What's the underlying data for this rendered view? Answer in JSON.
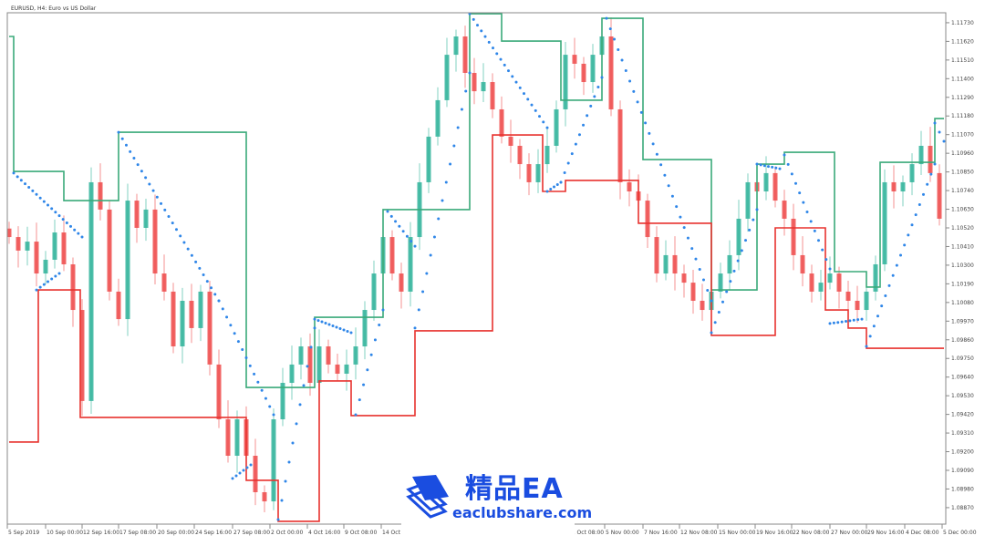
{
  "header": {
    "title": "EURUSD, H4:  Euro vs US Dollar"
  },
  "watermark": {
    "brand_cn": "精品EA",
    "url": "eaclubshare.com"
  },
  "colors": {
    "bull": "#2fb39a",
    "bear": "#ef4a4a",
    "upper_channel": "#3aaa7a",
    "lower_channel": "#e8322e",
    "sar": "#2f86e8",
    "axis": "#888888"
  },
  "chart_data": {
    "type": "candlestick",
    "symbol": "EURUSD",
    "timeframe": "H4",
    "ylim": [
      1.0877,
      1.1186
    ],
    "y_ticks": [
      "1.11730",
      "1.11620",
      "1.11510",
      "1.11400",
      "1.11290",
      "1.11180",
      "1.11070",
      "1.10960",
      "1.10850",
      "1.10740",
      "1.10630",
      "1.10520",
      "1.10410",
      "1.10300",
      "1.10190",
      "1.10080",
      "1.09970",
      "1.09860",
      "1.09750",
      "1.09640",
      "1.09530",
      "1.09420",
      "1.09310",
      "1.09200",
      "1.09090",
      "1.08980",
      "1.08870"
    ],
    "x_ticks": [
      "5 Sep 2019",
      "10 Sep 00:00",
      "12 Sep 16:00",
      "17 Sep 08:00",
      "20 Sep 00:00",
      "24 Sep 16:00",
      "27 Sep 08:00",
      "2 Oct 00:00",
      "4 Oct 16:00",
      "9 Oct 08:00",
      "14 Oct 00:00",
      "31 Oct 08:00",
      "5 Nov 00:00",
      "7 Nov 16:00",
      "12 Nov 08:00",
      "15 Nov 00:00",
      "19 Nov 16:00",
      "22 Nov 08:00",
      "27 Nov 00:00",
      "29 Nov 16:00",
      "4 Dec 08:00",
      "5 Dec 00:00"
    ],
    "closes": [
      1.10466,
      1.10386,
      1.10439,
      1.10251,
      1.10332,
      1.10493,
      1.10305,
      1.10036,
      1.09499,
      1.10789,
      1.10628,
      1.10144,
      1.09982,
      1.10681,
      1.1052,
      1.10628,
      1.10251,
      1.10144,
      1.09821,
      1.1009,
      1.09929,
      1.10144,
      1.09714,
      1.09391,
      1.09176,
      1.09391,
      1.09176,
      1.08961,
      1.08907,
      1.09391,
      1.09606,
      1.09714,
      1.09821,
      1.09606,
      1.09821,
      1.09714,
      1.0966,
      1.09714,
      1.09821,
      1.10036,
      1.10251,
      1.10466,
      1.10251,
      1.10144,
      1.10466,
      1.10789,
      1.11058,
      1.11273,
      1.11541,
      1.11649,
      1.11434,
      1.11326,
      1.1138,
      1.11219,
      1.11058,
      1.11004,
      1.10896,
      1.10789,
      1.10896,
      1.11004,
      1.11219,
      1.11541,
      1.11488,
      1.1138,
      1.11541,
      1.11649,
      1.11219,
      1.10789,
      1.10735,
      1.10681,
      1.10466,
      1.10251,
      1.10359,
      1.10251,
      1.10197,
      1.1009,
      1.10036,
      1.10144,
      1.10251,
      1.10359,
      1.10574,
      1.10789,
      1.10735,
      1.10843,
      1.10681,
      1.10574,
      1.10359,
      1.10251,
      1.10144,
      1.10197,
      1.10251,
      1.10144,
      1.1009,
      1.10036,
      1.10144,
      1.10305,
      1.10789,
      1.10735,
      1.10789,
      1.10896,
      1.11004,
      1.10843,
      1.10574
    ],
    "upper_channel": [
      [
        0,
        1.11649
      ],
      [
        0.5,
        1.10853
      ],
      [
        6,
        1.10681
      ],
      [
        12,
        1.11084
      ],
      [
        26,
        1.09579
      ],
      [
        33.5,
        1.09993
      ],
      [
        41,
        1.10628
      ],
      [
        50.5,
        1.11783
      ],
      [
        54,
        1.11622
      ],
      [
        60.5,
        1.11273
      ],
      [
        65,
        1.11756
      ],
      [
        69.5,
        1.10923
      ],
      [
        77,
        1.10154
      ],
      [
        82,
        1.10896
      ],
      [
        85,
        1.10966
      ],
      [
        90.5,
        1.10262
      ],
      [
        94,
        1.10171
      ],
      [
        95.5,
        1.10907
      ],
      [
        101.5,
        1.11165
      ],
      [
        102.5,
        1.11165
      ]
    ],
    "lower_channel": [
      [
        0,
        1.09257
      ],
      [
        3.2,
        1.10154
      ],
      [
        7.8,
        1.09402
      ],
      [
        26,
        1.09031
      ],
      [
        29.5,
        1.08789
      ],
      [
        34,
        1.09617
      ],
      [
        37.5,
        1.09413
      ],
      [
        44.5,
        1.09913
      ],
      [
        53,
        1.11068
      ],
      [
        58.5,
        1.10735
      ],
      [
        61,
        1.108
      ],
      [
        69,
        1.10547
      ],
      [
        77,
        1.09886
      ],
      [
        84,
        1.1052
      ],
      [
        89.5,
        1.10036
      ],
      [
        92,
        1.09929
      ],
      [
        94,
        1.0981
      ],
      [
        102.5,
        1.0981
      ]
    ],
    "sar_segments": [
      [
        0.5,
        1.10843,
        8,
        1.10466
      ],
      [
        3,
        1.10154,
        5.5,
        1.10251
      ],
      [
        12,
        1.11084,
        23,
        1.1009
      ],
      [
        23,
        1.1009,
        29,
        1.09418
      ],
      [
        24.5,
        1.09042,
        26.5,
        1.09122
      ],
      [
        29.5,
        1.088,
        33.5,
        1.09929
      ],
      [
        33.5,
        1.09982,
        37.5,
        1.09902
      ],
      [
        38,
        1.09418,
        41,
        1.10036
      ],
      [
        41.5,
        1.10617,
        44.5,
        1.10412
      ],
      [
        44.5,
        1.09929,
        50.5,
        1.11434
      ],
      [
        50.5,
        1.11783,
        59,
        1.11111
      ],
      [
        59,
        1.10735,
        60.5,
        1.10789
      ],
      [
        60.5,
        1.10789,
        65,
        1.11407
      ],
      [
        65.5,
        1.11756,
        77,
        1.1009
      ],
      [
        77,
        1.09902,
        82,
        1.10628
      ],
      [
        82,
        1.10896,
        84.5,
        1.10869
      ],
      [
        85,
        1.1095,
        90,
        1.10278
      ],
      [
        90,
        1.09956,
        93.5,
        1.09982
      ],
      [
        94,
        1.09821,
        101.5,
        1.10896
      ],
      [
        101.5,
        1.11138,
        102.5,
        1.11031
      ]
    ]
  }
}
